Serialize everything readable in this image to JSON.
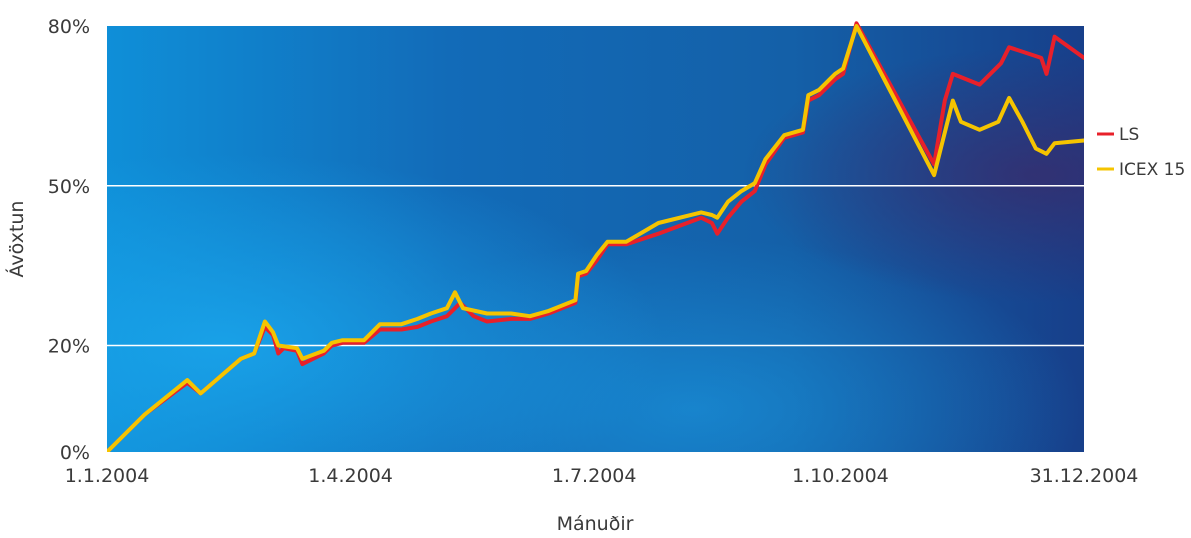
{
  "chart_data": {
    "type": "line",
    "xlabel": "Mánuðir",
    "ylabel": "Ávöxtun",
    "x_ticks": [
      "1.1.2004",
      "1.4.2004",
      "1.7.2004",
      "1.10.2004",
      "31.12.2004"
    ],
    "y_ticks": [
      "0%",
      "20%",
      "50%",
      "80%"
    ],
    "ylim": [
      0,
      80
    ],
    "grid": "horizontal",
    "legend_position": "right",
    "series": [
      {
        "name": "LS",
        "color": "#e8202a",
        "points": [
          [
            "2004-01-01",
            0
          ],
          [
            "2004-01-15",
            7
          ],
          [
            "2004-01-31",
            13
          ],
          [
            "2004-02-05",
            11
          ],
          [
            "2004-02-20",
            17.5
          ],
          [
            "2004-02-25",
            18.5
          ],
          [
            "2004-02-29",
            23.5
          ],
          [
            "2004-03-03",
            22
          ],
          [
            "2004-03-05",
            18.5
          ],
          [
            "2004-03-07",
            19.5
          ],
          [
            "2004-03-12",
            19
          ],
          [
            "2004-03-14",
            16.5
          ],
          [
            "2004-03-22",
            18.5
          ],
          [
            "2004-03-25",
            20
          ],
          [
            "2004-03-29",
            20.5
          ],
          [
            "2004-04-06",
            20.5
          ],
          [
            "2004-04-12",
            23
          ],
          [
            "2004-04-20",
            23
          ],
          [
            "2004-04-26",
            23.5
          ],
          [
            "2004-05-01",
            24.5
          ],
          [
            "2004-05-07",
            25.5
          ],
          [
            "2004-05-12",
            28
          ],
          [
            "2004-05-17",
            25.5
          ],
          [
            "2004-05-22",
            24.5
          ],
          [
            "2004-05-31",
            25
          ],
          [
            "2004-06-07",
            25
          ],
          [
            "2004-06-14",
            26
          ],
          [
            "2004-06-24",
            28
          ],
          [
            "2004-06-25",
            33
          ],
          [
            "2004-06-28",
            33.5
          ],
          [
            "2004-07-02",
            36
          ],
          [
            "2004-07-06",
            39
          ],
          [
            "2004-07-13",
            39
          ],
          [
            "2004-07-25",
            41
          ],
          [
            "2004-08-10",
            44
          ],
          [
            "2004-08-14",
            43
          ],
          [
            "2004-08-16",
            41
          ],
          [
            "2004-08-20",
            44
          ],
          [
            "2004-08-25",
            47
          ],
          [
            "2004-08-30",
            49
          ],
          [
            "2004-09-03",
            54
          ],
          [
            "2004-09-10",
            59
          ],
          [
            "2004-09-17",
            60
          ],
          [
            "2004-09-19",
            66
          ],
          [
            "2004-09-23",
            67
          ],
          [
            "2004-09-29",
            70
          ],
          [
            "2004-10-02",
            71
          ],
          [
            "2004-10-07",
            80.5
          ],
          [
            "2004-11-05",
            54
          ],
          [
            "2004-11-09",
            66
          ],
          [
            "2004-11-12",
            71
          ],
          [
            "2004-11-22",
            69
          ],
          [
            "2004-11-30",
            73
          ],
          [
            "2004-12-03",
            76
          ],
          [
            "2004-12-15",
            74
          ],
          [
            "2004-12-17",
            71
          ],
          [
            "2004-12-20",
            78
          ],
          [
            "2004-12-31",
            74
          ]
        ]
      },
      {
        "name": "ICEX 15",
        "color": "#f5c400",
        "points": [
          [
            "2004-01-01",
            0
          ],
          [
            "2004-01-15",
            7
          ],
          [
            "2004-01-31",
            13.5
          ],
          [
            "2004-02-05",
            11
          ],
          [
            "2004-02-20",
            17.5
          ],
          [
            "2004-02-25",
            18.5
          ],
          [
            "2004-02-29",
            24.5
          ],
          [
            "2004-03-03",
            22.5
          ],
          [
            "2004-03-05",
            20
          ],
          [
            "2004-03-12",
            19.5
          ],
          [
            "2004-03-14",
            17.5
          ],
          [
            "2004-03-22",
            19
          ],
          [
            "2004-03-25",
            20.5
          ],
          [
            "2004-03-29",
            21
          ],
          [
            "2004-04-06",
            21
          ],
          [
            "2004-04-12",
            24
          ],
          [
            "2004-04-20",
            24
          ],
          [
            "2004-04-26",
            25
          ],
          [
            "2004-05-01",
            26
          ],
          [
            "2004-05-07",
            27
          ],
          [
            "2004-05-10",
            30
          ],
          [
            "2004-05-13",
            27
          ],
          [
            "2004-05-22",
            26
          ],
          [
            "2004-05-31",
            26
          ],
          [
            "2004-06-07",
            25.5
          ],
          [
            "2004-06-14",
            26.5
          ],
          [
            "2004-06-24",
            28.5
          ],
          [
            "2004-06-25",
            33.5
          ],
          [
            "2004-06-28",
            34
          ],
          [
            "2004-07-02",
            37
          ],
          [
            "2004-07-06",
            39.5
          ],
          [
            "2004-07-13",
            39.5
          ],
          [
            "2004-07-25",
            43
          ],
          [
            "2004-08-10",
            45
          ],
          [
            "2004-08-14",
            44.5
          ],
          [
            "2004-08-16",
            44
          ],
          [
            "2004-08-20",
            47
          ],
          [
            "2004-08-25",
            49
          ],
          [
            "2004-08-30",
            50.5
          ],
          [
            "2004-09-03",
            55
          ],
          [
            "2004-09-10",
            59.5
          ],
          [
            "2004-09-17",
            60.5
          ],
          [
            "2004-09-19",
            67
          ],
          [
            "2004-09-23",
            68
          ],
          [
            "2004-09-29",
            71
          ],
          [
            "2004-10-02",
            72
          ],
          [
            "2004-10-07",
            80
          ],
          [
            "2004-11-05",
            52
          ],
          [
            "2004-11-09",
            60
          ],
          [
            "2004-11-12",
            66
          ],
          [
            "2004-11-15",
            62
          ],
          [
            "2004-11-22",
            60.5
          ],
          [
            "2004-11-29",
            62
          ],
          [
            "2004-12-03",
            66.5
          ],
          [
            "2004-12-08",
            62
          ],
          [
            "2004-12-13",
            57
          ],
          [
            "2004-12-17",
            56
          ],
          [
            "2004-12-20",
            58
          ],
          [
            "2004-12-31",
            58.5
          ]
        ]
      }
    ]
  }
}
